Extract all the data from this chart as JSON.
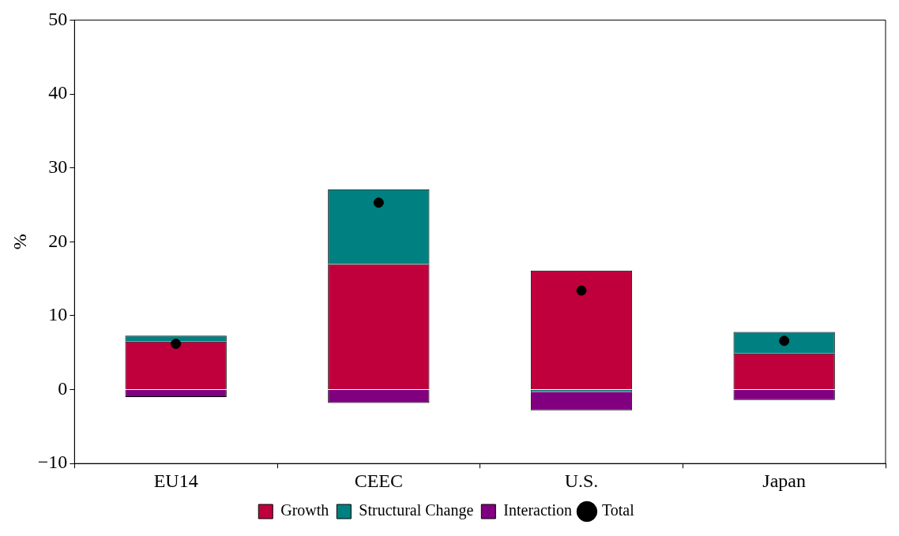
{
  "chart_data": {
    "type": "bar",
    "stacked": true,
    "ylabel": "%",
    "categories": [
      "EU14",
      "CEEC",
      "U.S.",
      "Japan"
    ],
    "series": [
      {
        "name": "Growth",
        "color": "#c0003c",
        "values": [
          6.5,
          17.0,
          16.1,
          4.9
        ]
      },
      {
        "name": "Structural Change",
        "color": "#008080",
        "values": [
          0.8,
          10.1,
          -0.3,
          2.9
        ]
      },
      {
        "name": "Interaction",
        "color": "#800080",
        "values": [
          -1.0,
          -1.8,
          -2.5,
          -1.4
        ]
      },
      {
        "name": "Total",
        "type": "scatter",
        "color": "#000000",
        "x": [
          "EU14",
          "CEEC",
          "U.S.",
          "Japan"
        ],
        "values": [
          6.2,
          25.3,
          13.4,
          6.6
        ]
      }
    ],
    "ylim": [
      -10,
      50
    ],
    "yticks": [
      -10,
      0,
      10,
      20,
      30,
      40,
      50
    ],
    "grid": false,
    "legend": "bottom",
    "marker": "circle"
  }
}
